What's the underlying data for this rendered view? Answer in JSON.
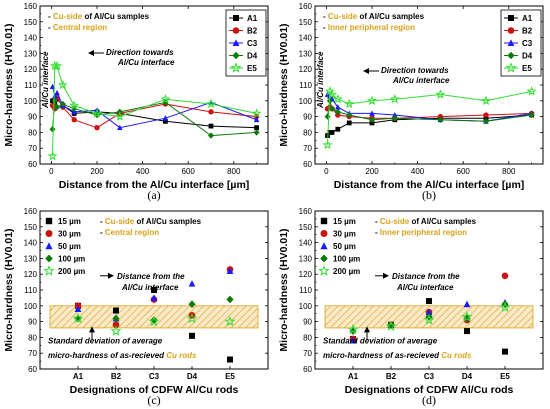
{
  "chart_data": [
    {
      "type": "line",
      "panel_label": "(a)",
      "xlabel": "Distance from the Al/Cu interface [µm]",
      "ylabel": "Micro-hardness (HV0.01)",
      "xlim": [
        -50,
        950
      ],
      "ylim": [
        60,
        160
      ],
      "xticks": [
        0,
        200,
        400,
        600,
        800
      ],
      "yticks": [
        60,
        70,
        80,
        90,
        100,
        110,
        120,
        130,
        140,
        150,
        160
      ],
      "legend_position": "top-right",
      "info_lines": [
        {
          "prefix": "- ",
          "text": "Cu-side",
          "rest": " of Al/Cu samples"
        },
        {
          "prefix": "- ",
          "text": "Central region",
          "rest": ""
        }
      ],
      "annotation_arrow": "Direction towards",
      "annotation_arrow2": "Al/Cu interface",
      "interface_label": "Al/Cu interface",
      "series": [
        {
          "name": "A1",
          "color": "#000000",
          "marker": "square",
          "x": [
            5,
            15,
            25,
            50,
            100,
            200,
            300,
            500,
            700,
            900
          ],
          "y": [
            100,
            98,
            101,
            97,
            92,
            93,
            92,
            87,
            84,
            83
          ]
        },
        {
          "name": "B2",
          "color": "#cc1111",
          "marker": "circle",
          "x": [
            5,
            15,
            25,
            50,
            100,
            200,
            300,
            500,
            700,
            900
          ],
          "y": [
            97,
            95,
            102,
            96,
            88,
            83,
            92,
            98,
            93,
            90
          ]
        },
        {
          "name": "C3",
          "color": "#1a1aff",
          "marker": "triangle",
          "x": [
            5,
            15,
            25,
            50,
            100,
            200,
            300,
            500,
            700,
            900
          ],
          "y": [
            109,
            103,
            105,
            97,
            93,
            94,
            83,
            89,
            99,
            88
          ]
        },
        {
          "name": "D4",
          "color": "#0b7a0b",
          "marker": "diamond",
          "x": [
            5,
            15,
            25,
            50,
            100,
            200,
            300,
            500,
            700,
            900
          ],
          "y": [
            82,
            100,
            96,
            98,
            95,
            91,
            93,
            99,
            78,
            80
          ]
        },
        {
          "name": "E5",
          "color": "#33dd33",
          "marker": "star",
          "x": [
            5,
            15,
            25,
            50,
            100,
            200,
            300,
            500,
            700,
            900
          ],
          "y": [
            65,
            122,
            122,
            110,
            97,
            92,
            90,
            101,
            98,
            92
          ]
        }
      ]
    },
    {
      "type": "line",
      "panel_label": "(b)",
      "xlabel": "Distance from the Al/Cu interface [µm]",
      "ylabel": "Micro-hardness (HV0.01)",
      "xlim": [
        -50,
        950
      ],
      "ylim": [
        60,
        160
      ],
      "xticks": [
        0,
        200,
        400,
        600,
        800
      ],
      "yticks": [
        60,
        70,
        80,
        90,
        100,
        110,
        120,
        130,
        140,
        150,
        160
      ],
      "legend_position": "top-right",
      "info_lines": [
        {
          "prefix": "- ",
          "text": "Cu-side",
          "rest": " of Al/Cu samples"
        },
        {
          "prefix": "- ",
          "text": "Inner peripheral region",
          "rest": ""
        }
      ],
      "annotation_arrow": "Direction towards",
      "annotation_arrow2": "Al/Cu interface",
      "interface_label": "Al/Cu interface",
      "series": [
        {
          "name": "A1",
          "color": "#000000",
          "marker": "square",
          "x": [
            5,
            15,
            25,
            50,
            100,
            200,
            300,
            500,
            700,
            900
          ],
          "y": [
            78,
            80,
            80,
            82,
            86,
            86,
            88,
            89,
            89,
            91
          ]
        },
        {
          "name": "B2",
          "color": "#cc1111",
          "marker": "circle",
          "x": [
            5,
            15,
            25,
            50,
            100,
            200,
            300,
            500,
            700,
            900
          ],
          "y": [
            95,
            96,
            95,
            91,
            90,
            89,
            89,
            90,
            91,
            92
          ]
        },
        {
          "name": "C3",
          "color": "#1a1aff",
          "marker": "triangle",
          "x": [
            5,
            15,
            25,
            50,
            100,
            200,
            300,
            500,
            700,
            900
          ],
          "y": [
            104,
            103,
            101,
            96,
            92,
            92,
            91,
            88,
            87,
            92
          ]
        },
        {
          "name": "D4",
          "color": "#0b7a0b",
          "marker": "diamond",
          "x": [
            5,
            15,
            25,
            50,
            100,
            200,
            300,
            500,
            700,
            900
          ],
          "y": [
            90,
            100,
            95,
            93,
            91,
            88,
            89,
            88,
            87,
            91
          ]
        },
        {
          "name": "E5",
          "color": "#33dd33",
          "marker": "star",
          "x": [
            5,
            15,
            25,
            50,
            100,
            200,
            300,
            500,
            700,
            900
          ],
          "y": [
            72,
            106,
            104,
            101,
            98,
            100,
            101,
            104,
            100,
            106
          ]
        }
      ]
    },
    {
      "type": "scatter",
      "panel_label": "(c)",
      "xlabel": "Designations of CDFW Al/Cu rods",
      "ylabel": "Micro-hardness (HV0.01)",
      "categories": [
        "A1",
        "B2",
        "C3",
        "D4",
        "E5"
      ],
      "ylim": [
        60,
        160
      ],
      "yticks": [
        60,
        70,
        80,
        90,
        100,
        110,
        120,
        130,
        140,
        150,
        160
      ],
      "legend_position": "top-left",
      "band": [
        86,
        100
      ],
      "info_lines": [
        {
          "prefix": "- ",
          "text": "Cu-side",
          "rest": " of Al/Cu samples"
        },
        {
          "prefix": "- ",
          "text": "Central region",
          "rest": ""
        }
      ],
      "annotation_arrow": "Distance from the",
      "annotation_arrow2": "Al/Cu interface",
      "std_note1": "Standard deviation of average",
      "std_note2a": "micro-hardness of as-recieved ",
      "std_note2b": "Cu rods",
      "series": [
        {
          "name": "15 µm",
          "color": "#000000",
          "marker": "square",
          "values": [
            100,
            97,
            110,
            81,
            66
          ]
        },
        {
          "name": "30 µm",
          "color": "#cc1111",
          "marker": "circle",
          "values": [
            100,
            88,
            104,
            94,
            123
          ]
        },
        {
          "name": "50 µm",
          "color": "#1a1aff",
          "marker": "triangle",
          "values": [
            98,
            92,
            105,
            114,
            122
          ]
        },
        {
          "name": "100 µm",
          "color": "#0b7a0b",
          "marker": "diamond",
          "values": [
            92,
            92,
            91,
            101,
            104
          ]
        },
        {
          "name": "200 µm",
          "color": "#33dd33",
          "marker": "star",
          "values": [
            92,
            84,
            90,
            92,
            90
          ]
        }
      ]
    },
    {
      "type": "scatter",
      "panel_label": "(d)",
      "xlabel": "Designations of CDFW Al/Cu rods",
      "ylabel": "Micro-hardness (HV0.01)",
      "categories": [
        "A1",
        "B2",
        "C3",
        "D4",
        "E5"
      ],
      "ylim": [
        60,
        160
      ],
      "yticks": [
        60,
        70,
        80,
        90,
        100,
        110,
        120,
        130,
        140,
        150,
        160
      ],
      "legend_position": "top-left",
      "band": [
        86,
        100
      ],
      "info_lines": [
        {
          "prefix": "- ",
          "text": "Cu-side",
          "rest": " of Al/Cu samples"
        },
        {
          "prefix": "- ",
          "text": "Inner peripheral region",
          "rest": ""
        }
      ],
      "annotation_arrow": "Distance from the",
      "annotation_arrow2": "Al/Cu interface",
      "std_note1": "Standard deviation of average",
      "std_note2a": "micro-hardness of as-recieved ",
      "std_note2b": "Cu rods",
      "series": [
        {
          "name": "15 µm",
          "color": "#000000",
          "marker": "square",
          "values": [
            79,
            88,
            103,
            84,
            71
          ]
        },
        {
          "name": "30 µm",
          "color": "#cc1111",
          "marker": "circle",
          "values": [
            79,
            88,
            96,
            91,
            119
          ]
        },
        {
          "name": "50 µm",
          "color": "#1a1aff",
          "marker": "triangle",
          "values": [
            78,
            88,
            96,
            101,
            102
          ]
        },
        {
          "name": "100 µm",
          "color": "#0b7a0b",
          "marker": "diamond",
          "values": [
            84,
            88,
            93,
            92,
            101
          ]
        },
        {
          "name": "200 µm",
          "color": "#33dd33",
          "marker": "star",
          "values": [
            85,
            87,
            91,
            93,
            99
          ]
        }
      ]
    }
  ]
}
